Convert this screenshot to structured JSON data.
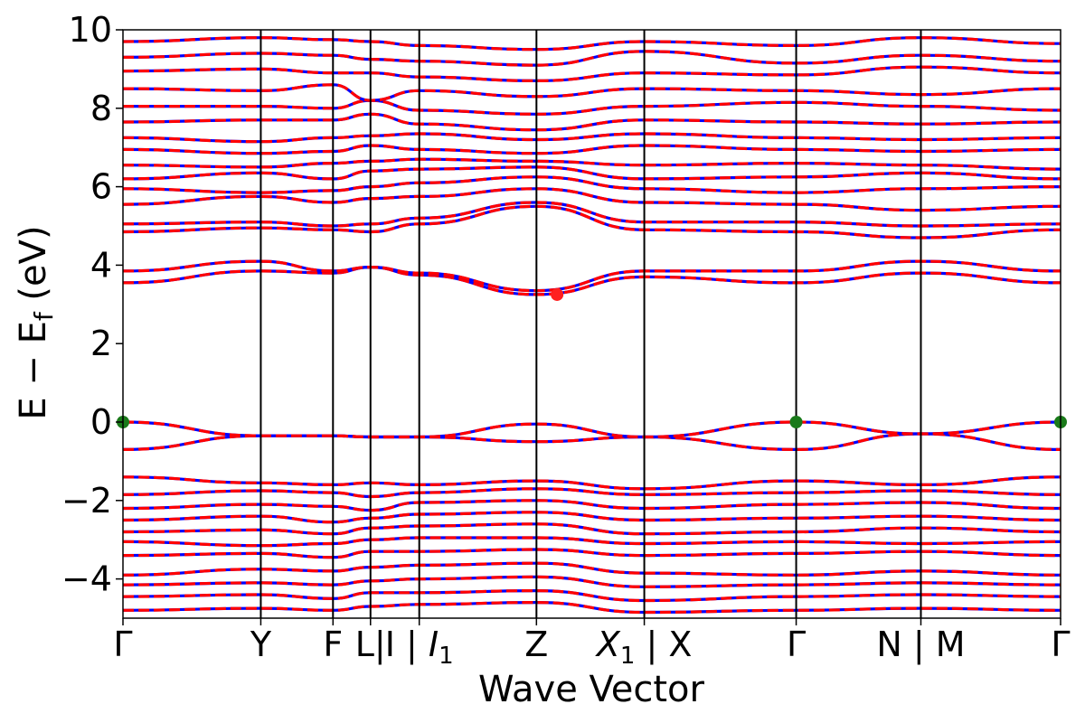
{
  "chart_data": {
    "type": "line",
    "title": "",
    "xlabel": "Wave Vector",
    "ylabel": "E − E",
    "ylabel_subscript": "f",
    "ylabel_unit": " (eV)",
    "ylim": [
      -5,
      10
    ],
    "yticks": [
      -4,
      -2,
      0,
      2,
      4,
      6,
      8,
      10
    ],
    "grid": false,
    "xlim": [
      0,
      1.0
    ],
    "kpoints": [
      {
        "pos": 0.0,
        "label": "Γ"
      },
      {
        "pos": 0.147,
        "label": "Y"
      },
      {
        "pos": 0.224,
        "label": "F"
      },
      {
        "pos": 0.264,
        "label": "L|"
      },
      {
        "pos": 0.316,
        "label": "I | ",
        "sub_label": "I",
        "sub": "1"
      },
      {
        "pos": 0.441,
        "label": "Z"
      },
      {
        "pos": 0.556,
        "label": " | X",
        "sub_label": "X",
        "sub": "1"
      },
      {
        "pos": 0.718,
        "label": "Γ"
      },
      {
        "pos": 0.851,
        "label": "N | M"
      },
      {
        "pos": 1.0,
        "label": "Γ"
      }
    ],
    "series": [
      {
        "style": "solid",
        "color": "#0000ff"
      },
      {
        "style": "dashed",
        "color": "#ff0000"
      }
    ],
    "bands": [
      [
        -0.7,
        -0.35,
        -0.35,
        -0.38,
        -0.38,
        -0.5,
        -0.38,
        -0.7,
        -0.3,
        -0.7
      ],
      [
        0.0,
        -0.35,
        -0.35,
        -0.38,
        -0.38,
        -0.05,
        -0.38,
        0.0,
        -0.3,
        0.0
      ],
      [
        3.55,
        3.85,
        3.8,
        3.95,
        3.75,
        3.25,
        3.7,
        3.55,
        3.8,
        3.55
      ],
      [
        3.85,
        4.1,
        3.85,
        3.95,
        3.8,
        3.35,
        3.85,
        3.85,
        4.1,
        3.85
      ],
      [
        4.85,
        4.95,
        4.9,
        4.85,
        5.05,
        5.5,
        4.9,
        4.85,
        4.7,
        4.9
      ],
      [
        5.05,
        5.1,
        5.0,
        5.05,
        5.2,
        5.6,
        5.1,
        5.1,
        5.0,
        5.05
      ],
      [
        5.55,
        5.75,
        5.6,
        5.7,
        5.75,
        5.95,
        5.6,
        5.55,
        5.4,
        5.5
      ],
      [
        5.95,
        5.85,
        5.9,
        6.0,
        6.1,
        6.25,
        5.95,
        5.85,
        5.95,
        6.0
      ],
      [
        6.2,
        6.35,
        6.2,
        6.4,
        6.45,
        6.5,
        6.2,
        6.25,
        6.35,
        6.2
      ],
      [
        6.55,
        6.5,
        6.6,
        6.65,
        6.7,
        6.65,
        6.55,
        6.6,
        6.55,
        6.45
      ],
      [
        6.95,
        6.85,
        6.9,
        7.05,
        6.95,
        6.85,
        7.05,
        6.95,
        6.9,
        6.95
      ],
      [
        7.25,
        7.15,
        7.25,
        7.3,
        7.35,
        7.2,
        7.35,
        7.25,
        7.2,
        7.25
      ],
      [
        7.65,
        7.7,
        7.7,
        7.85,
        7.6,
        7.45,
        7.7,
        7.65,
        7.6,
        7.65
      ],
      [
        8.05,
        8.05,
        8.0,
        8.2,
        7.95,
        7.85,
        8.05,
        8.15,
        8.05,
        7.95
      ],
      [
        8.5,
        8.45,
        8.6,
        8.2,
        8.45,
        8.3,
        8.5,
        8.45,
        8.35,
        8.5
      ],
      [
        8.95,
        9.0,
        8.9,
        8.9,
        8.8,
        8.7,
        8.9,
        8.85,
        9.05,
        8.9
      ],
      [
        9.3,
        9.4,
        9.35,
        9.25,
        9.2,
        9.1,
        9.45,
        9.15,
        9.35,
        9.2
      ],
      [
        9.7,
        9.8,
        9.75,
        9.7,
        9.6,
        9.5,
        9.7,
        9.6,
        9.8,
        9.65
      ],
      [
        -1.4,
        -1.55,
        -1.6,
        -1.55,
        -1.6,
        -1.5,
        -1.7,
        -1.5,
        -1.6,
        -1.4
      ],
      [
        -1.85,
        -1.75,
        -1.8,
        -1.9,
        -1.8,
        -1.7,
        -1.85,
        -1.8,
        -1.75,
        -1.85
      ],
      [
        -2.2,
        -2.1,
        -2.15,
        -2.25,
        -2.05,
        -2.0,
        -2.2,
        -2.1,
        -2.05,
        -2.2
      ],
      [
        -2.5,
        -2.4,
        -2.55,
        -2.45,
        -2.35,
        -2.3,
        -2.5,
        -2.45,
        -2.4,
        -2.5
      ],
      [
        -2.8,
        -2.75,
        -2.85,
        -2.7,
        -2.65,
        -2.6,
        -2.85,
        -2.8,
        -2.7,
        -2.8
      ],
      [
        -3.05,
        -3.15,
        -3.1,
        -3.0,
        -2.95,
        -2.95,
        -3.1,
        -3.05,
        -3.1,
        -3.05
      ],
      [
        -3.4,
        -3.35,
        -3.45,
        -3.3,
        -3.3,
        -3.25,
        -3.4,
        -3.35,
        -3.3,
        -3.4
      ],
      [
        -3.9,
        -3.75,
        -3.8,
        -3.7,
        -3.65,
        -3.6,
        -3.85,
        -3.9,
        -3.8,
        -3.9
      ],
      [
        -4.15,
        -4.1,
        -4.15,
        -4.05,
        -4.0,
        -3.95,
        -4.2,
        -4.15,
        -4.1,
        -4.15
      ],
      [
        -4.45,
        -4.4,
        -4.5,
        -4.35,
        -4.35,
        -4.3,
        -4.55,
        -4.45,
        -4.4,
        -4.45
      ],
      [
        -4.8,
        -4.75,
        -4.8,
        -4.7,
        -4.65,
        -4.6,
        -4.85,
        -4.8,
        -4.75,
        -4.8
      ]
    ],
    "markers": [
      {
        "x": 0.0,
        "y": 0.0,
        "color": "#1a7a1a"
      },
      {
        "x": 0.718,
        "y": 0.0,
        "color": "#1a7a1a"
      },
      {
        "x": 1.0,
        "y": 0.0,
        "color": "#1a7a1a"
      },
      {
        "x": 0.463,
        "y": 3.25,
        "color": "#ff2020"
      }
    ]
  }
}
